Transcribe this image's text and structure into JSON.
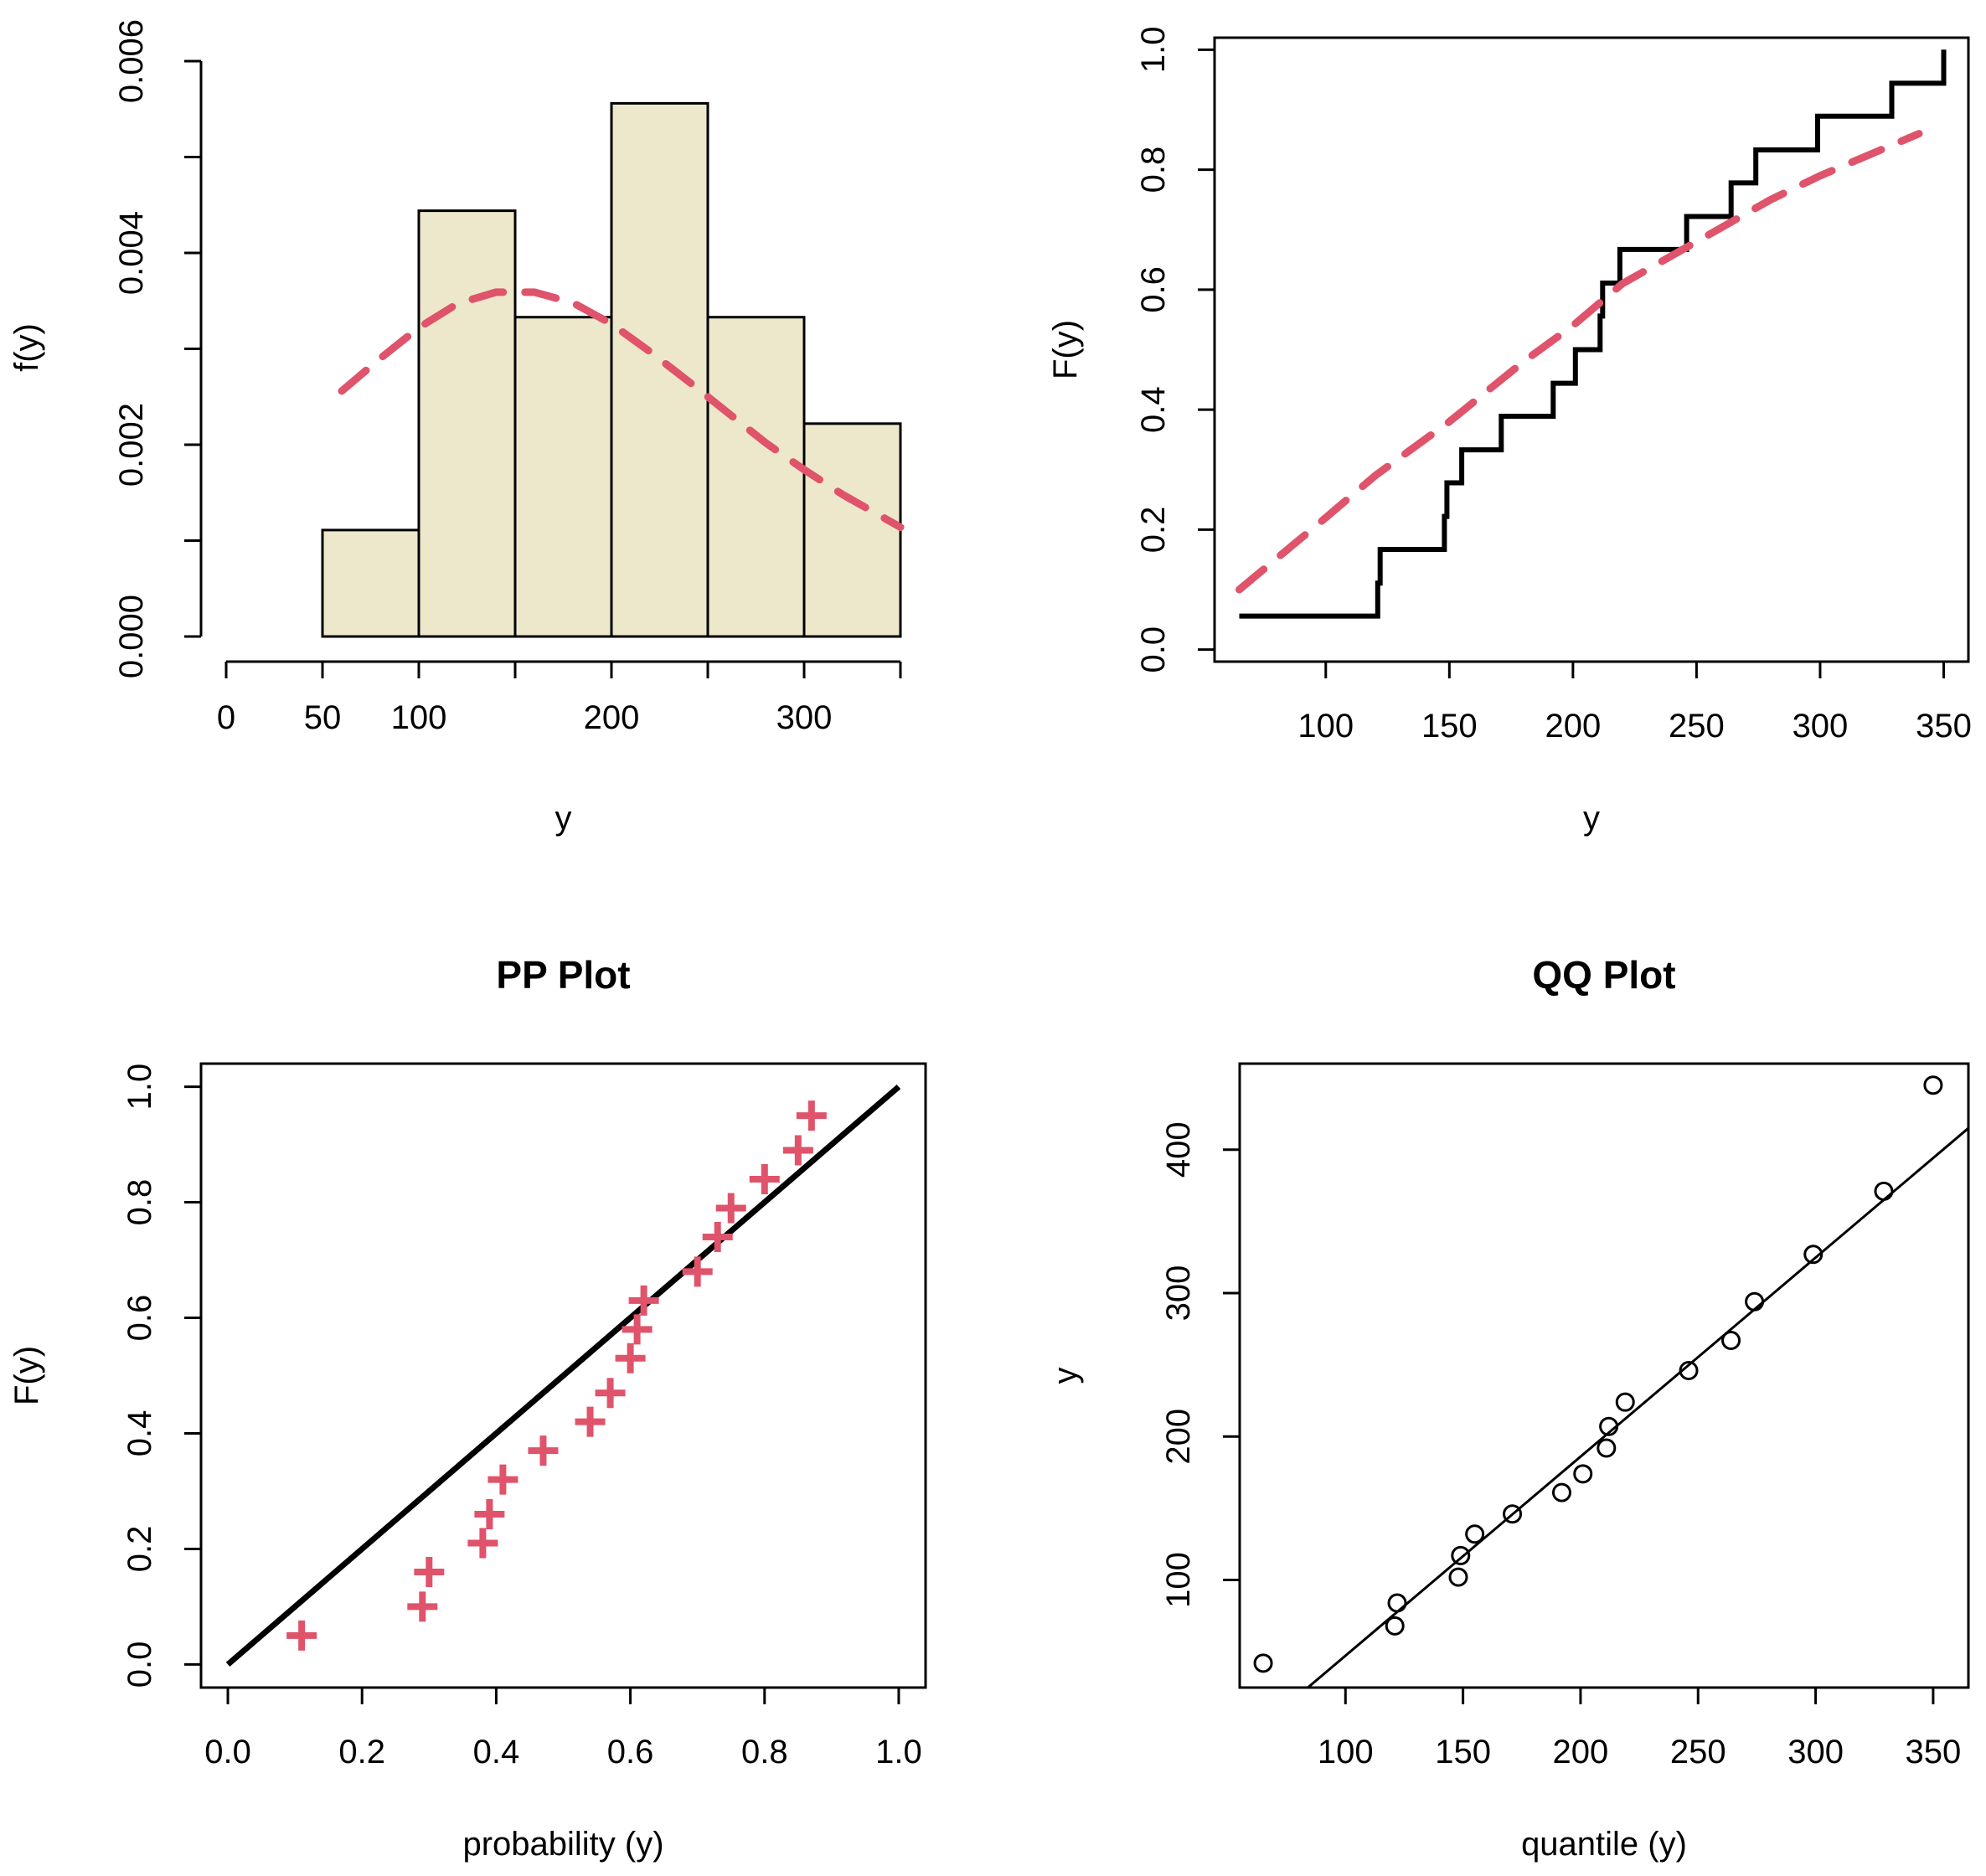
{
  "colors": {
    "hist_fill": "#EDE8CB",
    "fit_line": "#DF536B",
    "ink": "#000000"
  },
  "chart_data": [
    {
      "id": "histogram",
      "type": "bar",
      "title": "",
      "xlabel": "y",
      "ylabel": "f(y)",
      "bins": [
        [
          50,
          100
        ],
        [
          100,
          150
        ],
        [
          150,
          200
        ],
        [
          200,
          250
        ],
        [
          250,
          300
        ],
        [
          300,
          350
        ]
      ],
      "values": [
        0.00111,
        0.00444,
        0.00333,
        0.00556,
        0.00333,
        0.00222
      ],
      "xlim": [
        0,
        350
      ],
      "ylim": [
        0,
        0.006
      ],
      "xticks": [
        0,
        50,
        100,
        200,
        300
      ],
      "xtick_positions": [
        0,
        50,
        100,
        150,
        200,
        250,
        300,
        350
      ],
      "yticks": [
        0.0,
        0.002,
        0.004,
        0.006
      ],
      "ytick_labels": [
        "0.000",
        "0.002",
        "0.004",
        "0.006"
      ],
      "yticks_minor": [
        0.001,
        0.003,
        0.005
      ],
      "fit_curve": {
        "x": [
          60,
          80,
          100,
          120,
          140,
          160,
          180,
          200,
          220,
          240,
          260,
          280,
          300,
          320,
          350
        ],
        "y": [
          0.00256,
          0.0029,
          0.00322,
          0.00347,
          0.00359,
          0.00359,
          0.00348,
          0.00326,
          0.00297,
          0.00266,
          0.00234,
          0.00202,
          0.00174,
          0.00148,
          0.00114
        ]
      }
    },
    {
      "id": "cdf",
      "type": "line",
      "title": "",
      "xlabel": "y",
      "ylabel": "F(y)",
      "xlim": [
        55,
        360
      ],
      "ylim": [
        -0.02,
        1.02
      ],
      "xticks": [
        100,
        150,
        200,
        250,
        300,
        350
      ],
      "yticks": [
        0.0,
        0.2,
        0.4,
        0.6,
        0.8,
        1.0
      ],
      "ytick_labels": [
        "0.0",
        "0.2",
        "0.4",
        "0.6",
        "0.8",
        "1.0"
      ],
      "ecdf": {
        "x": [
          65,
          121,
          122,
          148,
          149,
          155,
          171,
          192,
          201,
          211,
          212,
          219,
          246,
          264,
          274,
          299,
          329,
          350
        ],
        "y": [
          0.056,
          0.111,
          0.167,
          0.222,
          0.278,
          0.333,
          0.389,
          0.444,
          0.5,
          0.556,
          0.611,
          0.667,
          0.722,
          0.778,
          0.833,
          0.889,
          0.944,
          1.0
        ]
      },
      "fit_curve": {
        "x": [
          65,
          100,
          120,
          150,
          180,
          200,
          220,
          250,
          280,
          300,
          340
        ],
        "y": [
          0.1,
          0.22,
          0.29,
          0.38,
          0.48,
          0.54,
          0.61,
          0.68,
          0.75,
          0.79,
          0.86
        ]
      }
    },
    {
      "id": "pp-plot",
      "type": "scatter",
      "title": "PP Plot",
      "xlabel": "probability (y)",
      "ylabel": "F(y)",
      "xlim": [
        -0.04,
        1.04
      ],
      "ylim": [
        -0.04,
        1.04
      ],
      "xticks": [
        0.0,
        0.2,
        0.4,
        0.6,
        0.8,
        1.0
      ],
      "xtick_labels": [
        "0.0",
        "0.2",
        "0.4",
        "0.6",
        "0.8",
        "1.0"
      ],
      "yticks": [
        0.0,
        0.2,
        0.4,
        0.6,
        0.8,
        1.0
      ],
      "ytick_labels": [
        "0.0",
        "0.2",
        "0.4",
        "0.6",
        "0.8",
        "1.0"
      ],
      "points": {
        "x": [
          0.11,
          0.29,
          0.3,
          0.38,
          0.39,
          0.41,
          0.47,
          0.54,
          0.57,
          0.6,
          0.61,
          0.62,
          0.7,
          0.73,
          0.75,
          0.8,
          0.85,
          0.87
        ],
        "y": [
          0.05,
          0.1,
          0.16,
          0.21,
          0.26,
          0.32,
          0.37,
          0.42,
          0.47,
          0.53,
          0.58,
          0.63,
          0.68,
          0.74,
          0.79,
          0.84,
          0.89,
          0.95
        ]
      },
      "reference_line": {
        "x": [
          0,
          1
        ],
        "y": [
          0,
          1
        ]
      }
    },
    {
      "id": "qq-plot",
      "type": "scatter",
      "title": "QQ Plot",
      "xlabel": "quantile (y)",
      "ylabel": "y",
      "xlim": [
        55,
        365
      ],
      "ylim": [
        25,
        460
      ],
      "xticks": [
        100,
        150,
        200,
        250,
        300,
        350
      ],
      "yticks": [
        100,
        200,
        300,
        400
      ],
      "points": {
        "x": [
          65,
          121,
          122,
          148,
          149,
          155,
          171,
          192,
          201,
          211,
          212,
          219,
          246,
          264,
          274,
          299,
          329,
          350
        ],
        "y": [
          42,
          68,
          84,
          102,
          117,
          132,
          146,
          161,
          174,
          192,
          207,
          224,
          246,
          267,
          294,
          327,
          371,
          445
        ]
      },
      "reference_line": {
        "x": [
          84,
          365
        ],
        "y": [
          25,
          415
        ]
      }
    }
  ]
}
